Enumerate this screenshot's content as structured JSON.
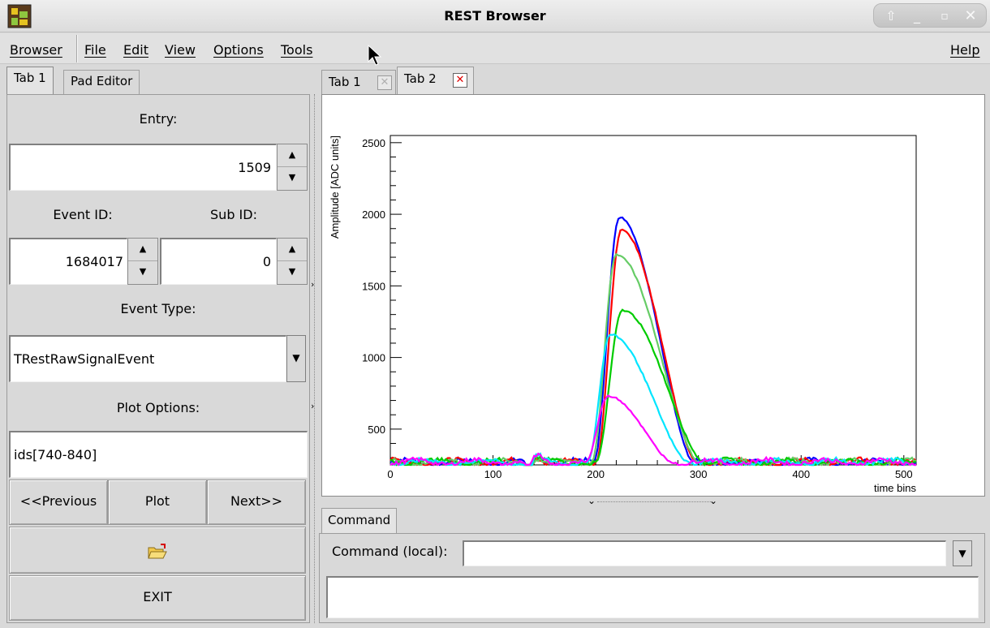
{
  "window": {
    "title": "REST Browser",
    "app_icon": "rest-app-icon",
    "controls": [
      "restore-icon",
      "minimize-icon",
      "maximize-icon",
      "close-icon"
    ]
  },
  "menubar": {
    "browser": "Browser",
    "file": "File",
    "edit": "Edit",
    "view": "View",
    "options": "Options",
    "tools": "Tools",
    "help": "Help"
  },
  "left_tabs": [
    "Tab 1",
    "Pad Editor"
  ],
  "left_panel": {
    "entry_label": "Entry:",
    "entry_value": "1509",
    "event_id_label": "Event ID:",
    "sub_id_label": "Sub ID:",
    "event_id_value": "1684017",
    "sub_id_value": "0",
    "event_type_label": "Event Type:",
    "event_type_value": "TRestRawSignalEvent",
    "plot_options_label": "Plot Options:",
    "plot_options_value": "ids[740-840]",
    "previous_label": "<<Previous",
    "plot_label": "Plot",
    "next_label": "Next>>",
    "open_icon": "folder-open-icon",
    "exit_label": "EXIT"
  },
  "right_tabs": [
    "Tab 1",
    "Tab 2"
  ],
  "command": {
    "tab_label": "Command",
    "local_label": "Command (local):",
    "input_value": ""
  },
  "colors": {
    "blue": "#0000ff",
    "red": "#ff0000",
    "lightgreen": "#66cc66",
    "green": "#00cc00",
    "cyan": "#00e5ff",
    "magenta": "#ff00ff"
  },
  "chart_data": {
    "type": "line",
    "xlabel": "time bins",
    "ylabel": "Amplitude [ADC units]",
    "xlim": [
      0,
      512
    ],
    "ylim": [
      250,
      2550
    ],
    "xticks": [
      0,
      100,
      200,
      300,
      400,
      500
    ],
    "yticks": [
      500,
      1000,
      1500,
      2000,
      2500
    ],
    "series": [
      {
        "color": "#0000ff",
        "peak_x": 223,
        "peak_y": 1980,
        "start_x": 198,
        "end_x": 295
      },
      {
        "color": "#ff0000",
        "peak_x": 225,
        "peak_y": 1890,
        "start_x": 200,
        "end_x": 298
      },
      {
        "color": "#66cc66",
        "peak_x": 220,
        "peak_y": 1720,
        "start_x": 196,
        "end_x": 300
      },
      {
        "color": "#00cc00",
        "peak_x": 226,
        "peak_y": 1330,
        "start_x": 200,
        "end_x": 305
      },
      {
        "color": "#00e5ff",
        "peak_x": 214,
        "peak_y": 1160,
        "start_x": 192,
        "end_x": 290
      },
      {
        "color": "#ff00ff",
        "peak_x": 212,
        "peak_y": 730,
        "start_x": 190,
        "end_x": 275
      }
    ]
  }
}
